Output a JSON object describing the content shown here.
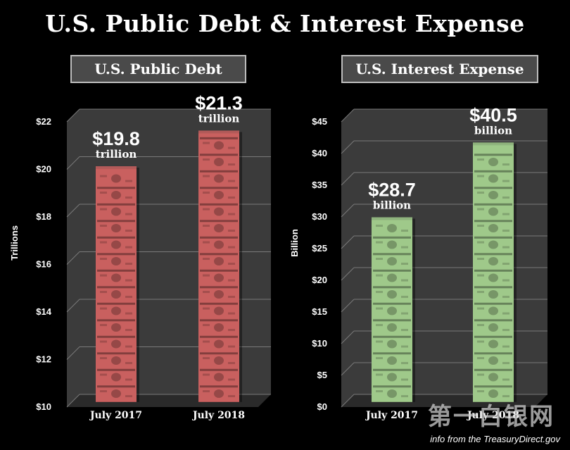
{
  "title": "U.S. Public Debt & Interest Expense",
  "watermark": {
    "logo_text": "第一白银网",
    "source": "info from the TreasuryDirect.gov"
  },
  "colors": {
    "debt_bar": "#c9605f",
    "interest_bar": "#9fc98a",
    "plot_bg": "#3b3b3b",
    "floor": "#2a2a2a"
  },
  "chart_data": [
    {
      "type": "bar",
      "title": "U.S. Public Debt",
      "ylabel": "Trillions",
      "categories": [
        "July 2017",
        "July 2018"
      ],
      "values": [
        19.8,
        21.3
      ],
      "ylim": [
        10,
        22
      ],
      "yticks": [
        10,
        12,
        14,
        16,
        18,
        20,
        22
      ],
      "ytick_labels": [
        "$10",
        "$12",
        "$14",
        "$16",
        "$18",
        "$20",
        "$22"
      ],
      "data_labels": [
        {
          "value": "$19.8",
          "unit": "trillion"
        },
        {
          "value": "$21.3",
          "unit": "trillion"
        }
      ],
      "grid": true,
      "color": "#c9605f"
    },
    {
      "type": "bar",
      "title": "U.S. Interest Expense",
      "ylabel": "Billion",
      "categories": [
        "July 2017",
        "July 2018"
      ],
      "values": [
        28.7,
        40.5
      ],
      "ylim": [
        0,
        45
      ],
      "yticks": [
        0,
        5,
        10,
        15,
        20,
        25,
        30,
        35,
        40,
        45
      ],
      "ytick_labels": [
        "$0",
        "$5",
        "$10",
        "$15",
        "$20",
        "$25",
        "$30",
        "$35",
        "$40",
        "$45"
      ],
      "data_labels": [
        {
          "value": "$28.7",
          "unit": "billion"
        },
        {
          "value": "$40.5",
          "unit": "billion"
        }
      ],
      "grid": true,
      "color": "#9fc98a"
    }
  ]
}
